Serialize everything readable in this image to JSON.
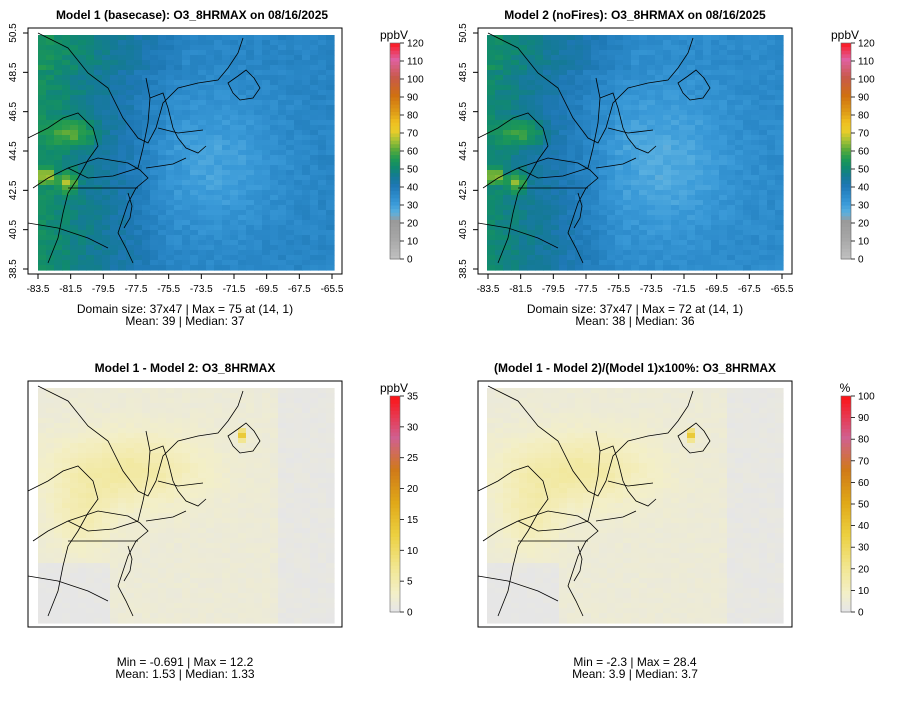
{
  "panels": [
    {
      "id": "p1",
      "title": "Model 1 (basecase): O3_8HRMAX on 08/16/2025",
      "stats_line1": "Domain size: 37x47 | Max = 75 at (14, 1)",
      "stats_line2": "Mean: 39 |  Median: 37",
      "unit": "ppbV",
      "show_axes": true,
      "field": "base",
      "colorbar_ticks": [
        "0",
        "10",
        "20",
        "30",
        "40",
        "50",
        "60",
        "70",
        "80",
        "90",
        "100",
        "110",
        "120"
      ],
      "colorbar_range": [
        0,
        120
      ],
      "colors": [
        "#bebebe",
        "#a9a9a9",
        "#9a9a9a",
        "#4da3dd",
        "#2f8fd0",
        "#1f7fbf",
        "#0e7a8a",
        "#1a9a5a",
        "#4fae3a",
        "#9ac43a",
        "#e6c82a",
        "#e0a020",
        "#d07010",
        "#c85050",
        "#d070a0",
        "#e0409a",
        "#ff0000"
      ]
    },
    {
      "id": "p2",
      "title": "Model 2 (noFires): O3_8HRMAX on 08/16/2025",
      "stats_line1": "Domain size: 37x47 | Max = 72 at (14, 1)",
      "stats_line2": "Mean: 38 |  Median: 36",
      "unit": "ppbV",
      "show_axes": true,
      "field": "nofire",
      "colorbar_ticks": [
        "0",
        "10",
        "20",
        "30",
        "40",
        "50",
        "60",
        "70",
        "80",
        "90",
        "100",
        "110",
        "120"
      ],
      "colorbar_range": [
        0,
        120
      ],
      "colors": []
    },
    {
      "id": "p3",
      "title": "Model 1 - Model 2: O3_8HRMAX",
      "stats_line1": "Min = -0.691 | Max = 12.2",
      "stats_line2": "Mean: 1.53 |  Median: 1.33",
      "unit": "ppbV",
      "show_axes": false,
      "field": "diff",
      "colorbar_ticks": [
        "0",
        "5",
        "10",
        "15",
        "20",
        "25",
        "30",
        "35"
      ],
      "colorbar_range": [
        0,
        35
      ],
      "colors": []
    },
    {
      "id": "p4",
      "title": "(Model 1 - Model 2)/(Model 1)x100%: O3_8HRMAX",
      "stats_line1": "Min = -2.3 | Max = 28.4",
      "stats_line2": "Mean: 3.9 |  Median: 3.7",
      "unit": "%",
      "show_axes": false,
      "field": "pct",
      "colorbar_ticks": [
        "0",
        "10",
        "20",
        "30",
        "40",
        "50",
        "60",
        "70",
        "80",
        "90",
        "100"
      ],
      "colorbar_range": [
        0,
        100
      ],
      "colors": []
    }
  ],
  "axes": {
    "x_ticks": [
      "-83.5",
      "-81.5",
      "-79.5",
      "-77.5",
      "-75.5",
      "-73.5",
      "-71.5",
      "-69.5",
      "-67.5",
      "-65.5"
    ],
    "y_ticks": [
      "38.5",
      "40.5",
      "42.5",
      "44.5",
      "46.5",
      "48.5",
      "50.5"
    ]
  },
  "chart_data": [
    {
      "type": "heatmap",
      "title": "Model 1 (basecase): O3_8HRMAX on 08/16/2025",
      "variable": "O3_8HRMAX",
      "units": "ppbV",
      "grid": "37x47",
      "x_range": [
        -83.5,
        -65.5
      ],
      "y_range": [
        38.5,
        50.5
      ],
      "colorbar_range": [
        0,
        120
      ],
      "max": 75,
      "max_location": "(14, 1)",
      "mean": 39,
      "median": 37
    },
    {
      "type": "heatmap",
      "title": "Model 2 (noFires): O3_8HRMAX on 08/16/2025",
      "variable": "O3_8HRMAX",
      "units": "ppbV",
      "grid": "37x47",
      "x_range": [
        -83.5,
        -65.5
      ],
      "y_range": [
        38.5,
        50.5
      ],
      "colorbar_range": [
        0,
        120
      ],
      "max": 72,
      "max_location": "(14, 1)",
      "mean": 38,
      "median": 36
    },
    {
      "type": "heatmap",
      "title": "Model 1 - Model 2: O3_8HRMAX",
      "units": "ppbV",
      "colorbar_range": [
        0,
        35
      ],
      "min": -0.691,
      "max": 12.2,
      "mean": 1.53,
      "median": 1.33
    },
    {
      "type": "heatmap",
      "title": "(Model 1 - Model 2)/(Model 1)x100%: O3_8HRMAX",
      "units": "%",
      "colorbar_range": [
        0,
        100
      ],
      "min": -2.3,
      "max": 28.4,
      "mean": 3.9,
      "median": 3.7
    }
  ]
}
